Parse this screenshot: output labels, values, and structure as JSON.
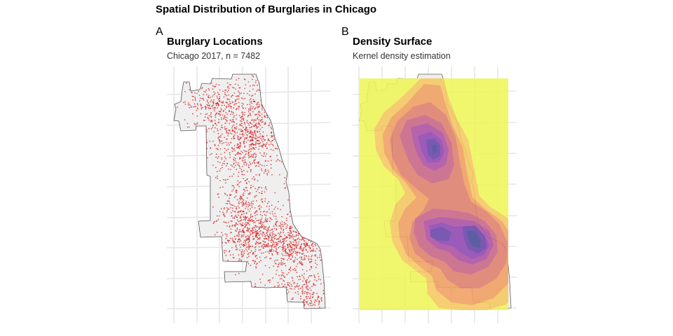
{
  "figure": {
    "title": "Spatial Distribution of Burglaries in Chicago"
  },
  "panels": [
    {
      "tag": "A",
      "title": "Burglary Locations",
      "subtitle": "Chicago 2017, n = 7482",
      "point_color": "#d7191c",
      "city_fill": "#efefef",
      "outline_color": "#555555"
    },
    {
      "tag": "B",
      "title": "Density Surface",
      "subtitle": "Kernel density estimation",
      "density_palette": [
        "#eff65a",
        "#f5c860",
        "#f1a061",
        "#e0806e",
        "#c96688",
        "#ae52a3",
        "#8f47b3",
        "#6b45a8",
        "#4a4a9a"
      ],
      "background_level_color": "#eff65a"
    }
  ],
  "legend": "none",
  "grid": "on"
}
